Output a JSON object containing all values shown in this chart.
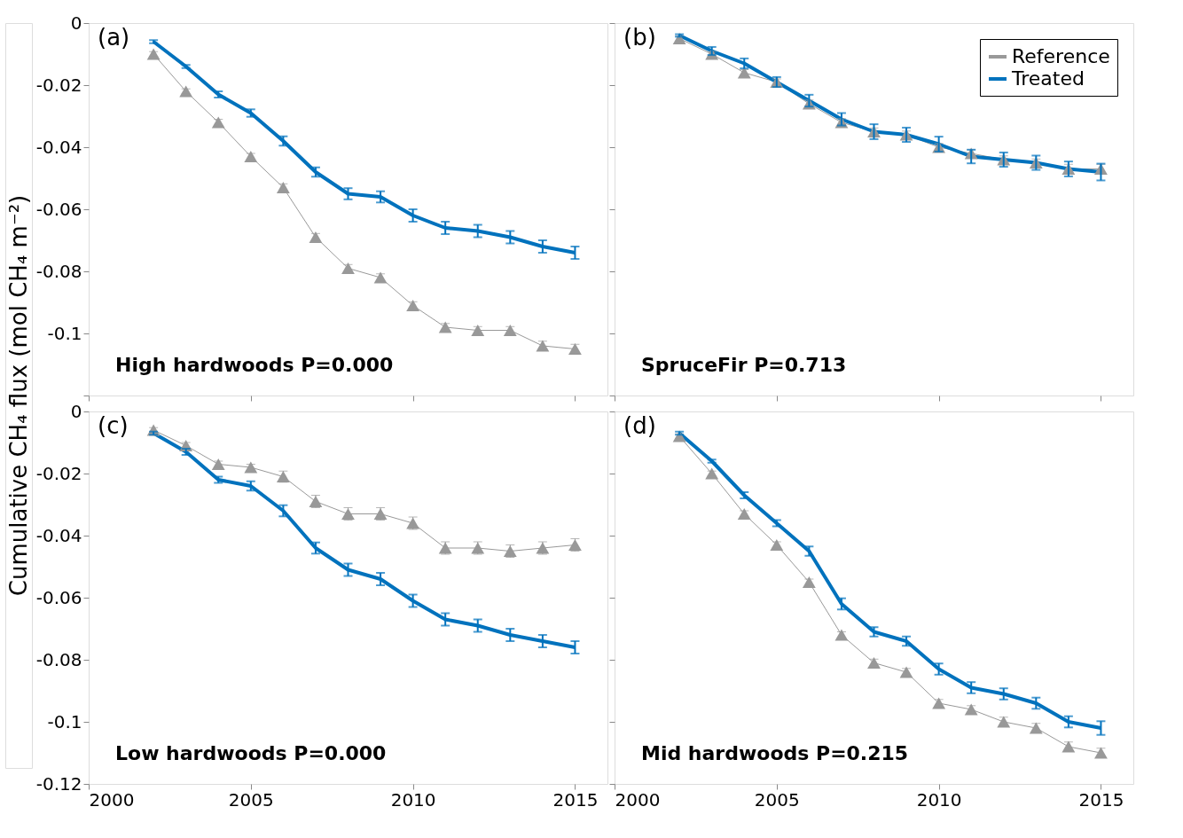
{
  "chart_data": [
    {
      "type": "line",
      "ylabel": "Cumulative CH₄ flux (mol CH₄ m⁻²)",
      "x": [
        2002,
        2003,
        2004,
        2005,
        2006,
        2007,
        2008,
        2009,
        2010,
        2011,
        2012,
        2013,
        2014,
        2015
      ],
      "xlim": [
        2000,
        2016
      ],
      "xticks": [
        2000,
        2005,
        2010,
        2015
      ],
      "ylim": [
        -0.12,
        0
      ],
      "yticks": [
        0,
        -0.02,
        -0.04,
        -0.06,
        -0.08,
        -0.1,
        {
          "value": -0.12,
          "label": null
        }
      ],
      "tick_labels": "y",
      "annotations": [
        "(a)",
        "High hardwoods  P=0.000"
      ],
      "series": [
        {
          "color": "#999999",
          "marker": "triangle",
          "line_style": "solid",
          "values": [
            -0.01,
            -0.022,
            -0.032,
            -0.043,
            -0.053,
            -0.069,
            -0.079,
            -0.082,
            -0.091,
            -0.098,
            -0.099,
            -0.099,
            -0.104,
            -0.105
          ],
          "errors": [
            0.0008,
            0.0008,
            0.001,
            0.001,
            0.0012,
            0.0012,
            0.0012,
            0.0012,
            0.0012,
            0.0012,
            0.0012,
            0.0012,
            0.0015,
            0.0015
          ]
        },
        {
          "color": "#0072bd",
          "marker": "none",
          "line_style": "solid",
          "values": [
            -0.006,
            -0.014,
            -0.023,
            -0.029,
            -0.038,
            -0.048,
            -0.055,
            -0.056,
            -0.062,
            -0.066,
            -0.067,
            -0.069,
            -0.072,
            -0.074
          ],
          "errors": [
            0.0005,
            0.0005,
            0.001,
            0.0012,
            0.0015,
            0.0015,
            0.0018,
            0.0018,
            0.002,
            0.002,
            0.002,
            0.002,
            0.002,
            0.002
          ]
        }
      ]
    },
    {
      "type": "line",
      "x": [
        2002,
        2003,
        2004,
        2005,
        2006,
        2007,
        2008,
        2009,
        2010,
        2011,
        2012,
        2013,
        2014,
        2015
      ],
      "xlim": [
        2000,
        2016
      ],
      "xticks": [
        2000,
        2005,
        2010,
        2015
      ],
      "ylim": [
        -0.12,
        0
      ],
      "yticks": [
        0,
        -0.02,
        -0.04,
        -0.06,
        -0.08,
        -0.1,
        -0.12
      ],
      "tick_labels": false,
      "legend": "top right",
      "annotations": [
        "(b)",
        "SpruceFir  P=0.713"
      ],
      "series": [
        {
          "name": "Reference",
          "color": "#999999",
          "marker": "triangle",
          "line_style": "solid",
          "values": [
            -0.005,
            -0.01,
            -0.016,
            -0.019,
            -0.026,
            -0.032,
            -0.035,
            -0.036,
            -0.04,
            -0.042,
            -0.044,
            -0.045,
            -0.047,
            -0.047
          ],
          "errors": [
            0.0008,
            0.0008,
            0.001,
            0.001,
            0.0012,
            0.0012,
            0.0012,
            0.0012,
            0.0012,
            0.0012,
            0.0012,
            0.0012,
            0.0015,
            0.0015
          ]
        },
        {
          "name": "Treated",
          "color": "#0072bd",
          "marker": "none",
          "line_style": "solid",
          "values": [
            -0.004,
            -0.009,
            -0.013,
            -0.019,
            -0.025,
            -0.031,
            -0.035,
            -0.036,
            -0.039,
            -0.043,
            -0.044,
            -0.045,
            -0.047,
            -0.048
          ],
          "errors": [
            0.0004,
            0.0013,
            0.0016,
            0.0016,
            0.0019,
            0.002,
            0.0024,
            0.0023,
            0.0024,
            0.0022,
            0.0023,
            0.0023,
            0.0024,
            0.0027
          ]
        }
      ]
    },
    {
      "type": "line",
      "x": [
        2002,
        2003,
        2004,
        2005,
        2006,
        2007,
        2008,
        2009,
        2010,
        2011,
        2012,
        2013,
        2014,
        2015
      ],
      "xlim": [
        2000,
        2016
      ],
      "xticks": [
        2000,
        2005,
        2010,
        2015
      ],
      "ylim": [
        -0.12,
        0
      ],
      "yticks": [
        0,
        -0.02,
        -0.04,
        -0.06,
        -0.08,
        -0.1,
        -0.12
      ],
      "annotations": [
        "(c)",
        "Low hardwoods  P=0.000"
      ],
      "series": [
        {
          "color": "#999999",
          "marker": "triangle",
          "line_style": "solid",
          "values": [
            -0.006,
            -0.011,
            -0.017,
            -0.018,
            -0.021,
            -0.029,
            -0.033,
            -0.033,
            -0.036,
            -0.044,
            -0.044,
            -0.045,
            -0.044,
            -0.043
          ],
          "errors": [
            0.0008,
            0.001,
            0.001,
            0.001,
            0.0018,
            0.002,
            0.002,
            0.002,
            0.002,
            0.002,
            0.002,
            0.002,
            0.002,
            0.002
          ]
        },
        {
          "color": "#0072bd",
          "marker": "none",
          "line_style": "solid",
          "values": [
            -0.007,
            -0.013,
            -0.022,
            -0.024,
            -0.032,
            -0.044,
            -0.051,
            -0.054,
            -0.061,
            -0.067,
            -0.069,
            -0.072,
            -0.074,
            -0.076
          ],
          "errors": [
            0.0005,
            0.001,
            0.001,
            0.0015,
            0.0018,
            0.0018,
            0.002,
            0.002,
            0.002,
            0.002,
            0.002,
            0.002,
            0.002,
            0.002
          ]
        }
      ]
    },
    {
      "type": "line",
      "x": [
        2002,
        2003,
        2004,
        2005,
        2006,
        2007,
        2008,
        2009,
        2010,
        2011,
        2012,
        2013,
        2014,
        2015
      ],
      "xlim": [
        2000,
        2016
      ],
      "xticks": [
        2000,
        2005,
        2010,
        2015
      ],
      "ylim": [
        -0.12,
        0
      ],
      "yticks": [
        0,
        -0.02,
        -0.04,
        -0.06,
        -0.08,
        -0.1,
        -0.12
      ],
      "tick_labels": "x",
      "annotations": [
        "(d)",
        "Mid hardwoods  P=0.215"
      ],
      "series": [
        {
          "color": "#999999",
          "marker": "triangle",
          "line_style": "solid",
          "values": [
            -0.008,
            -0.02,
            -0.033,
            -0.043,
            -0.055,
            -0.072,
            -0.081,
            -0.084,
            -0.094,
            -0.096,
            -0.1,
            -0.102,
            -0.108,
            -0.11
          ],
          "errors": [
            0.0008,
            0.0008,
            0.001,
            0.001,
            0.001,
            0.001,
            0.0012,
            0.0012,
            0.0012,
            0.0012,
            0.0015,
            0.0015,
            0.0015,
            0.0015
          ]
        },
        {
          "color": "#0072bd",
          "marker": "none",
          "line_style": "solid",
          "values": [
            -0.007,
            -0.016,
            -0.027,
            -0.036,
            -0.045,
            -0.062,
            -0.071,
            -0.074,
            -0.083,
            -0.089,
            -0.091,
            -0.094,
            -0.1,
            -0.102
          ],
          "errors": [
            0.0005,
            0.0005,
            0.001,
            0.001,
            0.0015,
            0.0018,
            0.0015,
            0.0015,
            0.0018,
            0.0018,
            0.0018,
            0.0018,
            0.0018,
            0.0022
          ]
        }
      ]
    }
  ]
}
